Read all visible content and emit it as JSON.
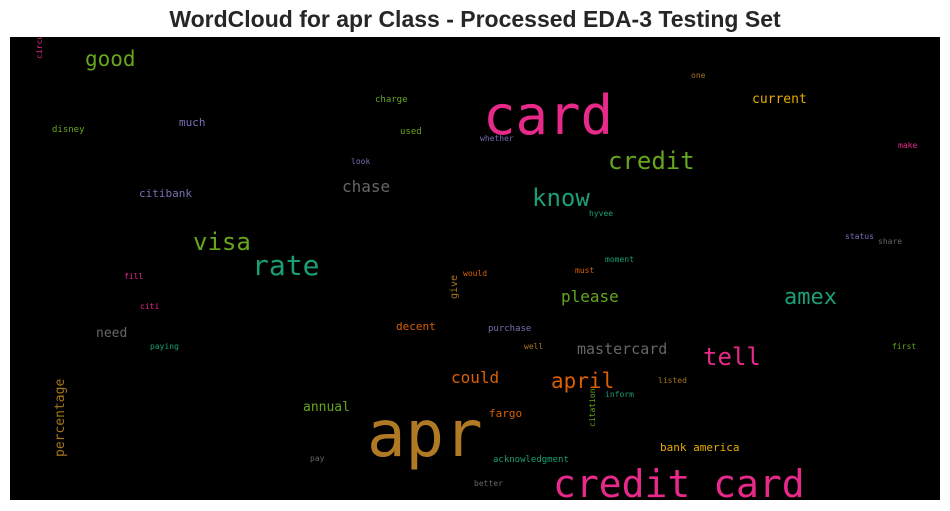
{
  "chart_data": {
    "type": "wordcloud",
    "title": "WordCloud for apr Class - Processed EDA-3 Testing Set",
    "background": "#000000",
    "words": [
      {
        "text": "apr",
        "color": "#b07a24"
      },
      {
        "text": "card",
        "color": "#e7298a"
      },
      {
        "text": "credit card",
        "color": "#e7298a"
      },
      {
        "text": "credit",
        "color": "#66a61e"
      },
      {
        "text": "know",
        "color": "#1b9e77"
      },
      {
        "text": "rate",
        "color": "#1b9e77"
      },
      {
        "text": "visa",
        "color": "#66a61e"
      },
      {
        "text": "amex",
        "color": "#1b9e77"
      },
      {
        "text": "tell",
        "color": "#e7298a"
      },
      {
        "text": "good",
        "color": "#66a61e"
      },
      {
        "text": "april",
        "color": "#d95f02"
      },
      {
        "text": "chase",
        "color": "#666666"
      },
      {
        "text": "please",
        "color": "#66a61e"
      },
      {
        "text": "could",
        "color": "#d95f02"
      },
      {
        "text": "mastercard",
        "color": "#666666"
      },
      {
        "text": "current",
        "color": "#e6ab02"
      },
      {
        "text": "need",
        "color": "#666666"
      },
      {
        "text": "percentage",
        "color": "#a6761d"
      },
      {
        "text": "annual",
        "color": "#66a61e"
      },
      {
        "text": "citibank",
        "color": "#7570b3"
      },
      {
        "text": "much",
        "color": "#7570b3"
      },
      {
        "text": "bank america",
        "color": "#e6ab02"
      },
      {
        "text": "decent",
        "color": "#d95f02"
      },
      {
        "text": "fargo",
        "color": "#d95f02"
      },
      {
        "text": "give",
        "color": "#a6761d"
      },
      {
        "text": "purchase",
        "color": "#7570b3"
      },
      {
        "text": "acknowledgment",
        "color": "#1b9e77"
      },
      {
        "text": "charge",
        "color": "#66a61e"
      },
      {
        "text": "used",
        "color": "#66a61e"
      },
      {
        "text": "disney",
        "color": "#66a61e"
      },
      {
        "text": "look",
        "color": "#7570b3"
      },
      {
        "text": "whether",
        "color": "#7570b3"
      },
      {
        "text": "one",
        "color": "#a6761d"
      },
      {
        "text": "make",
        "color": "#e7298a"
      },
      {
        "text": "hyvee",
        "color": "#1b9e77"
      },
      {
        "text": "moment",
        "color": "#1b9e77"
      },
      {
        "text": "status",
        "color": "#7570b3"
      },
      {
        "text": "share",
        "color": "#666666"
      },
      {
        "text": "fill",
        "color": "#e7298a"
      },
      {
        "text": "would",
        "color": "#d95f02"
      },
      {
        "text": "must",
        "color": "#d95f02"
      },
      {
        "text": "citi",
        "color": "#e7298a"
      },
      {
        "text": "paying",
        "color": "#1b9e77"
      },
      {
        "text": "well",
        "color": "#a6761d"
      },
      {
        "text": "first",
        "color": "#66a61e"
      },
      {
        "text": "listed",
        "color": "#a6761d"
      },
      {
        "text": "inform",
        "color": "#1b9e77"
      },
      {
        "text": "citation",
        "color": "#66a61e"
      },
      {
        "text": "pay",
        "color": "#666666"
      },
      {
        "text": "better",
        "color": "#666666"
      },
      {
        "text": "circuit",
        "color": "#e7298a"
      }
    ]
  }
}
